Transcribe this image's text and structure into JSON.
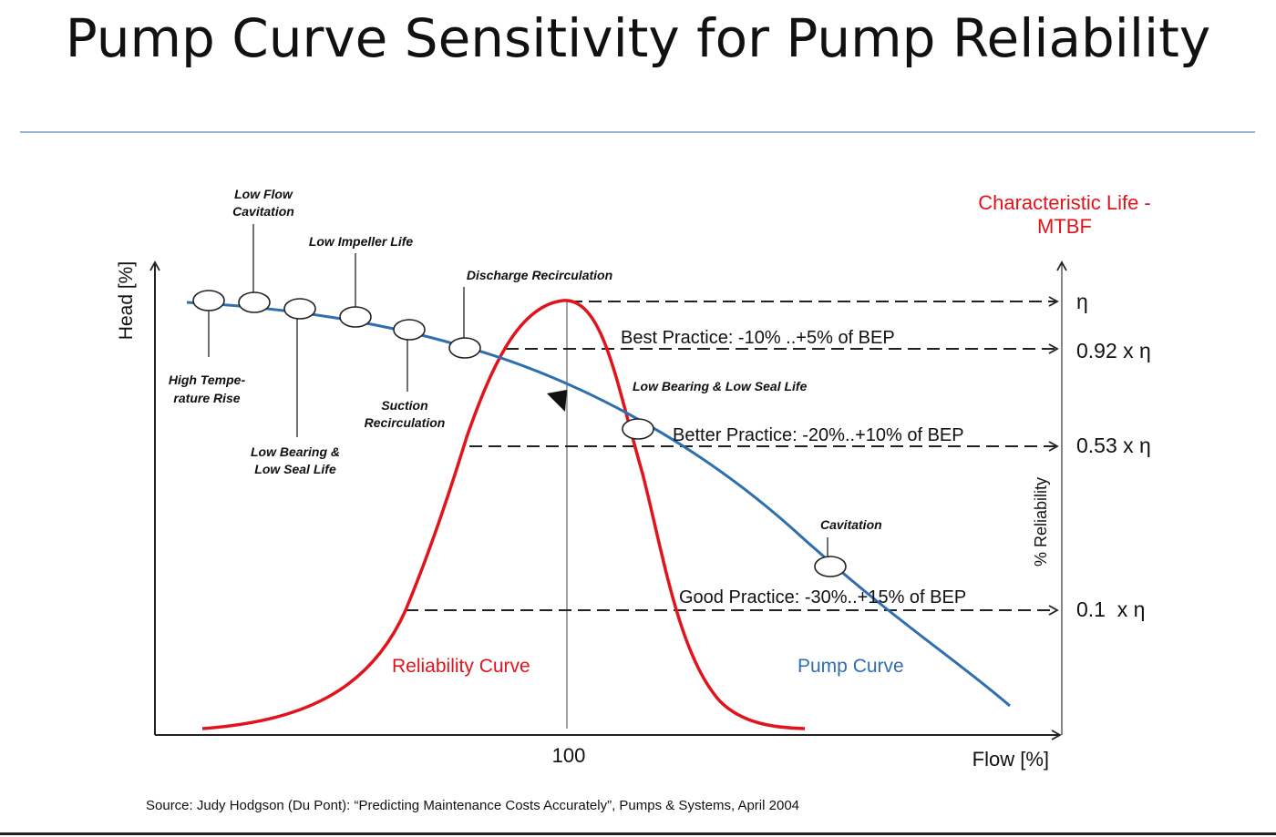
{
  "slide": {
    "title": "Pump Curve Sensitivity for Pump Reliability",
    "source": "Source: Judy Hodgson (Du Pont): “Predicting Maintenance Costs Accurately”, Pumps & Systems, April 2004"
  },
  "colors": {
    "pump_curve": "#2f6fae",
    "reliability_curve": "#e1141c",
    "title_rule": "#9bb4d8"
  },
  "axes": {
    "y_left": "Head [%]",
    "x": "Flow [%]",
    "x_tick": "100",
    "y_right": "% Reliability",
    "right_title_line1": "Characteristic Life -",
    "right_title_line2": "MTBF"
  },
  "curves": {
    "reliability": "Reliability Curve",
    "pump": "Pump Curve"
  },
  "practices": {
    "best": "Best Practice:  -10% ..+5% of BEP",
    "better": "Better Practice:  -20%..+10% of BEP",
    "good": "Good Practice:  -30%..+15% of BEP"
  },
  "levels": {
    "l1": "η",
    "l2": "0.92 x η",
    "l3": "0.53 x η",
    "l4": "0.1  x η"
  },
  "annotations": {
    "low_flow_cavitation_1": "Low Flow",
    "low_flow_cavitation_2": "Cavitation",
    "low_impeller_life": "Low Impeller Life",
    "discharge_recirculation": "Discharge Recirculation",
    "high_temp_1": "High Tempe-",
    "high_temp_2": "rature Rise",
    "suction_recirc_1": "Suction",
    "suction_recirc_2": "Recirculation",
    "low_bearing_left_1": "Low Bearing &",
    "low_bearing_left_2": "Low Seal Life",
    "low_bearing_right": "Low Bearing & Low Seal Life",
    "cavitation": "Cavitation"
  }
}
